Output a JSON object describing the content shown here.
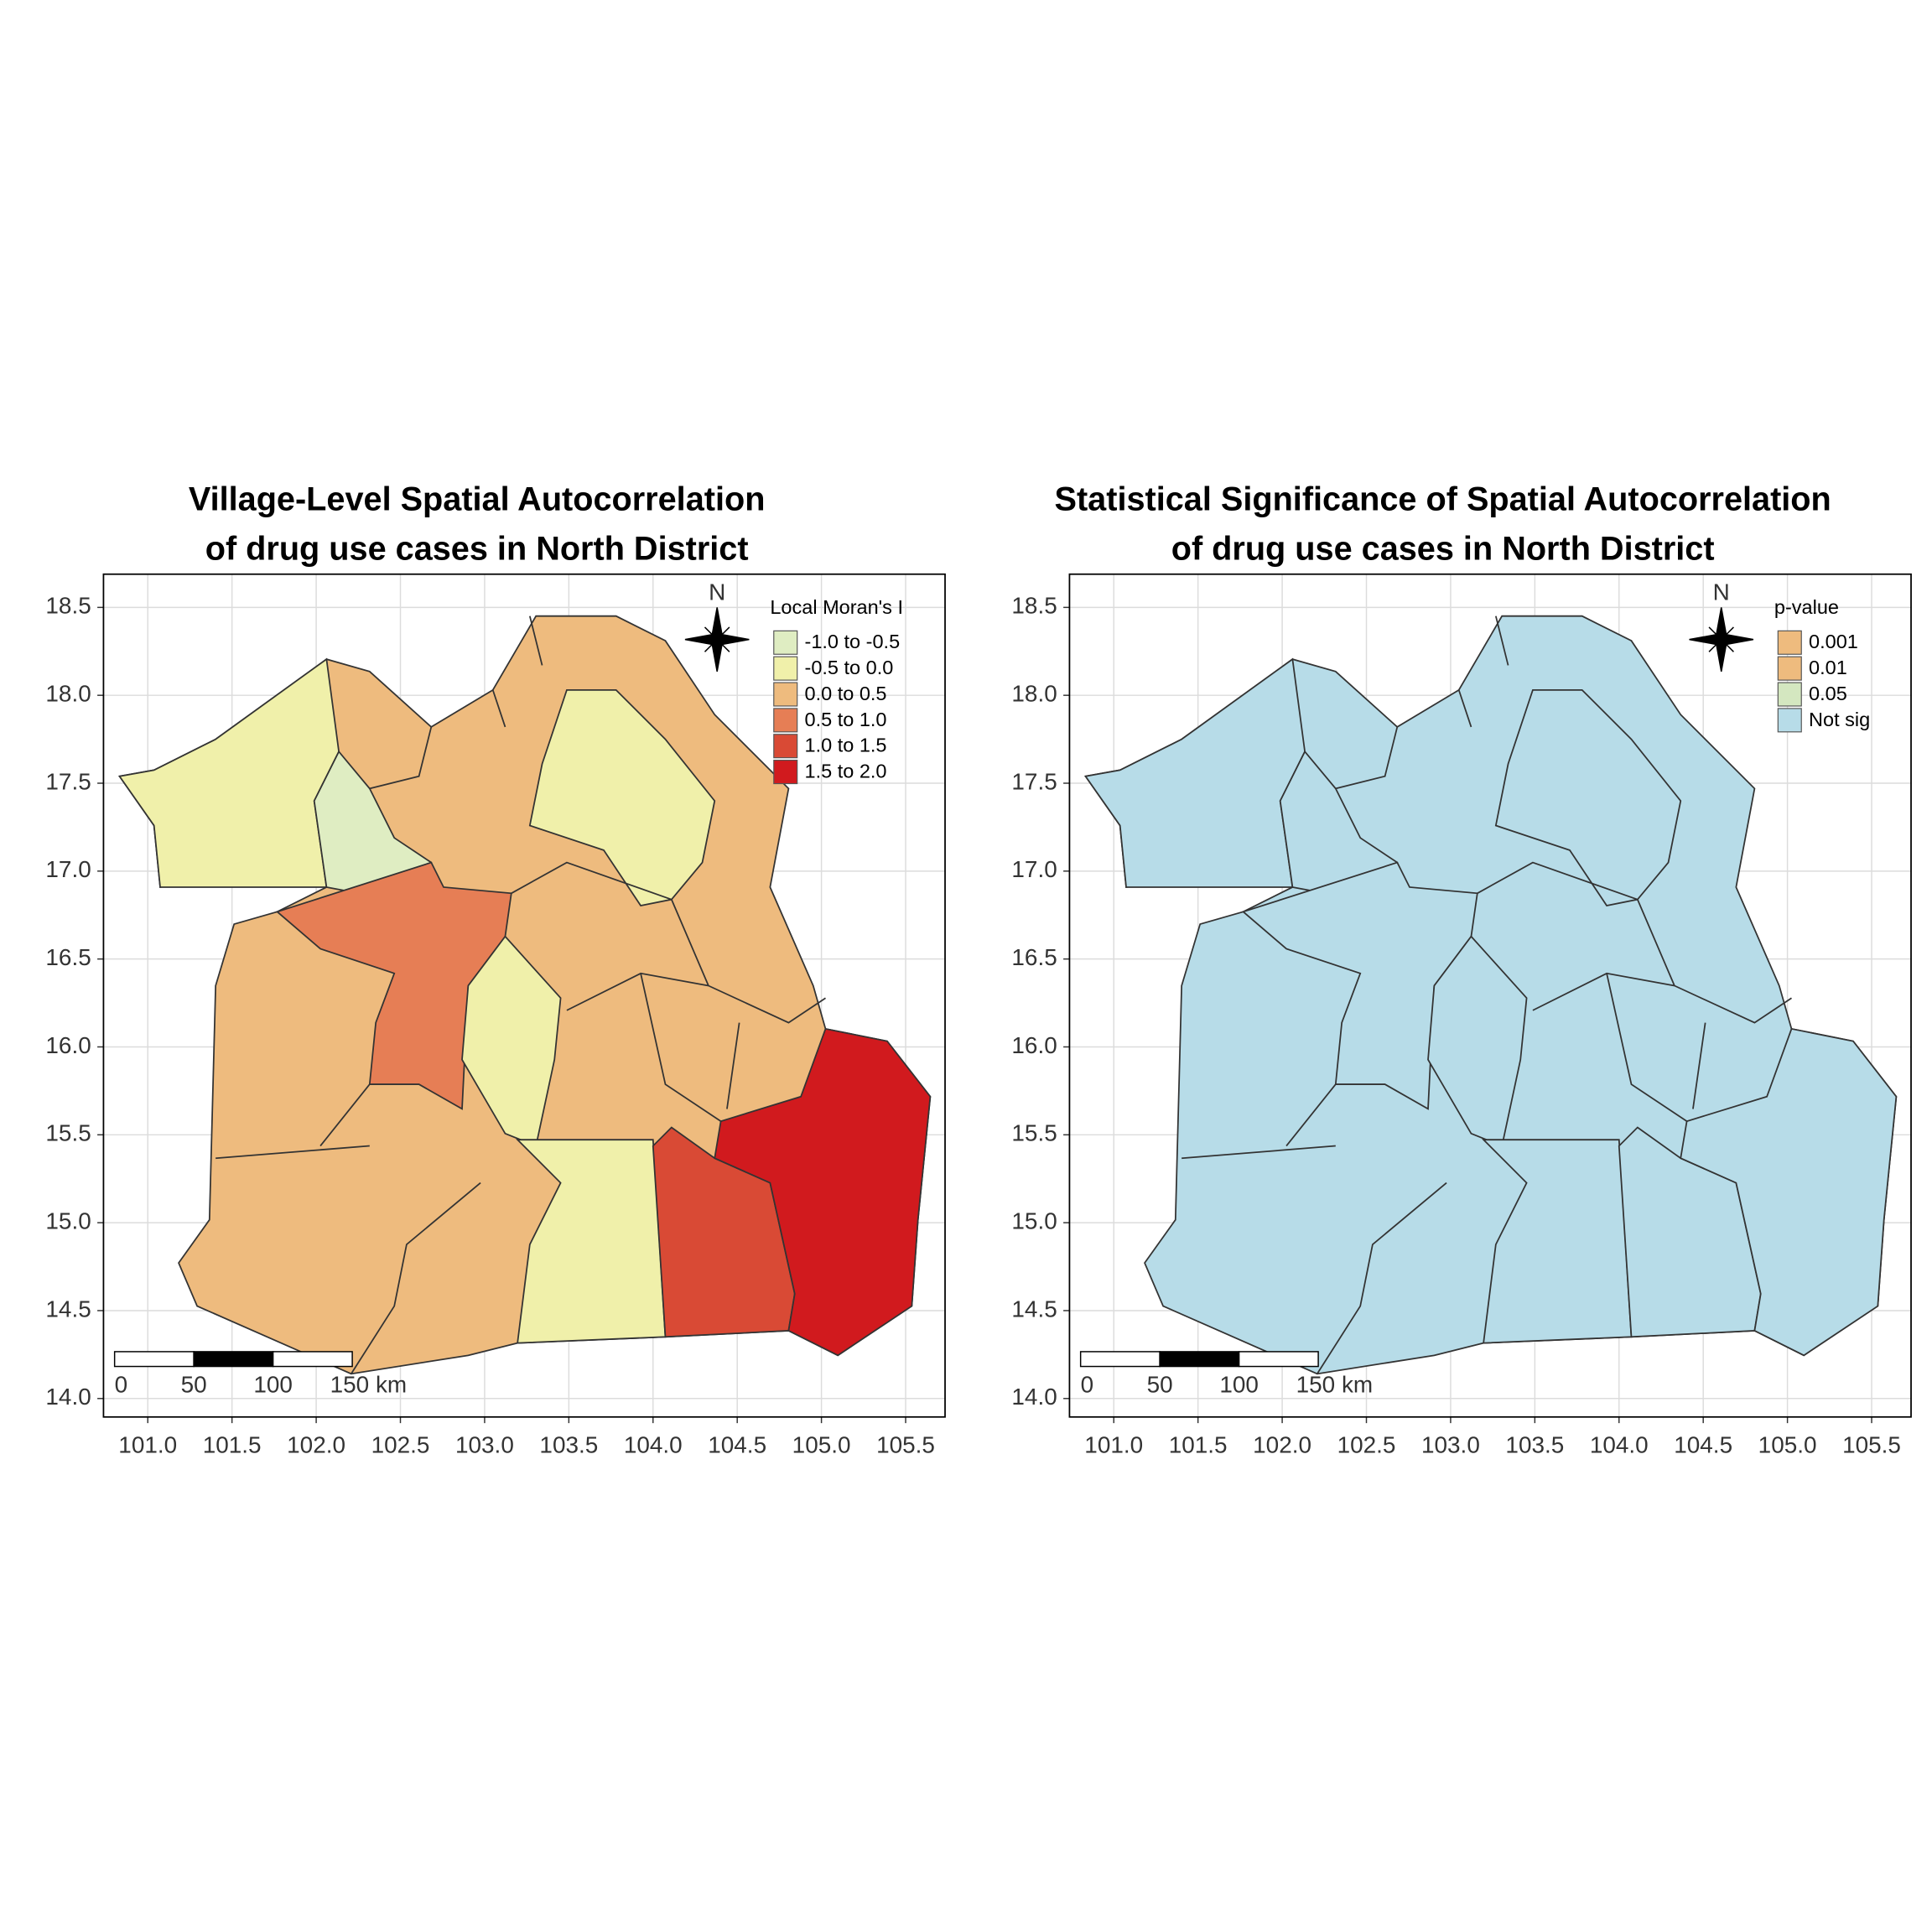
{
  "maps": [
    {
      "title": [
        "Village-Level Spatial Autocorrelation",
        "of drug use cases in North District"
      ],
      "xlim": [
        100.737,
        105.734
      ],
      "ylim": [
        13.895,
        18.689
      ],
      "xticks": [
        {
          "value": 101,
          "label": "101.0"
        },
        101.5,
        {
          "value": 102,
          "label": "102.0"
        },
        102.5,
        {
          "value": 103,
          "label": "103.0"
        },
        103.5,
        {
          "value": 104,
          "label": "104.0"
        },
        104.5,
        {
          "value": 105,
          "label": "105.0"
        },
        105.5
      ],
      "yticks": [
        {
          "value": 14,
          "label": "14.0"
        },
        14.5,
        {
          "value": 15,
          "label": "15.0"
        },
        15.5,
        {
          "value": 16,
          "label": "16.0"
        },
        16.5,
        {
          "value": 17,
          "label": "17.0"
        },
        17.5,
        {
          "value": 18,
          "label": "18.0"
        },
        18.5
      ],
      "grid": true,
      "north": "N",
      "scale_bar": [
        "0",
        "50",
        "100",
        "150 km"
      ],
      "legend": {
        "title": "Local Moran's I",
        "entries": [
          {
            "label": "-1.0 to -0.5",
            "color": "#dfedc2"
          },
          {
            "label": "-0.5 to 0.0",
            "color": "#f0f0aa"
          },
          {
            "label": "0.0 to 0.5",
            "color": "#eebb7e"
          },
          {
            "label": "0.5 to 1.0",
            "color": "#e67e55"
          },
          {
            "label": "1.0 to 1.5",
            "color": "#d94a35"
          },
          {
            "label": "1.5 to 2.0",
            "color": "#d11a1e"
          }
        ]
      }
    },
    {
      "title": [
        "Statistical Significance of Spatial Autocorrelation",
        "of drug use cases in North District"
      ],
      "xlim": [
        100.737,
        105.734
      ],
      "ylim": [
        13.895,
        18.689
      ],
      "xticks": [
        {
          "value": 101,
          "label": "101.0"
        },
        101.5,
        {
          "value": 102,
          "label": "102.0"
        },
        102.5,
        {
          "value": 103,
          "label": "103.0"
        },
        103.5,
        {
          "value": 104,
          "label": "104.0"
        },
        104.5,
        {
          "value": 105,
          "label": "105.0"
        },
        105.5
      ],
      "yticks": [
        {
          "value": 14,
          "label": "14.0"
        },
        14.5,
        {
          "value": 15,
          "label": "15.0"
        },
        15.5,
        {
          "value": 16,
          "label": "16.0"
        },
        16.5,
        {
          "value": 17,
          "label": "17.0"
        },
        17.5,
        {
          "value": 18,
          "label": "18.0"
        },
        18.5
      ],
      "grid": true,
      "north": "N",
      "scale_bar": [
        "0",
        "50",
        "100",
        "150 km"
      ],
      "legend": {
        "title": "p-value",
        "entries": [
          {
            "label": "0.001",
            "color": "#eebb7e"
          },
          {
            "label": "0.01",
            "color": "#eebb7e"
          },
          {
            "label": "0.05",
            "color": "#d4e7c0"
          },
          {
            "label": "Not sig",
            "color": "#b7dce8"
          }
        ]
      }
    }
  ]
}
